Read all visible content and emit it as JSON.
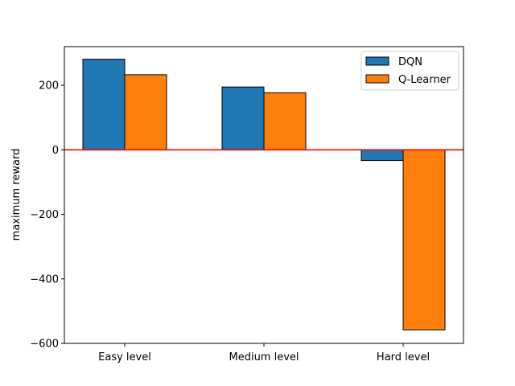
{
  "chart_data": {
    "type": "bar",
    "title": "",
    "xlabel": "",
    "ylabel": "maximum reward",
    "categories": [
      "Easy level",
      "Medium level",
      "Hard level"
    ],
    "series": [
      {
        "name": "DQN",
        "values": [
          281,
          195,
          -33
        ],
        "color": "#1f77b4"
      },
      {
        "name": "Q-Learner",
        "values": [
          233,
          177,
          -558
        ],
        "color": "#ff7f0e"
      }
    ],
    "ylim": [
      -600,
      320
    ],
    "yticks": [
      -600,
      -400,
      -200,
      0,
      200
    ],
    "ytick_labels": [
      "−600",
      "−400",
      "−200",
      "0",
      "200"
    ],
    "reference_line": {
      "y": 0,
      "color": "#ff0000"
    },
    "legend_position": "top-right",
    "grid": false
  }
}
